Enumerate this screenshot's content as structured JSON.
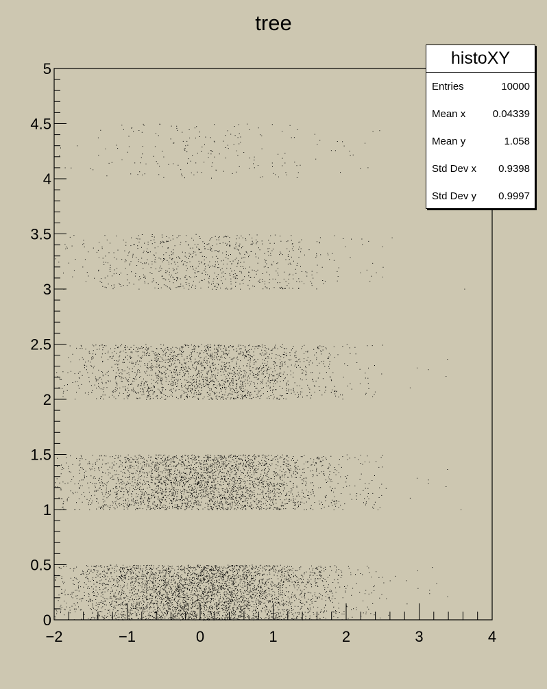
{
  "chart_data": {
    "type": "scatter",
    "title": "tree",
    "xlabel": "",
    "ylabel": "",
    "xlim": [
      -2,
      4
    ],
    "ylim": [
      0,
      5
    ],
    "x_ticks": [
      "−2",
      "−1",
      "0",
      "1",
      "2",
      "3",
      "4"
    ],
    "y_ticks": [
      "0",
      "0.5",
      "1",
      "1.5",
      "2",
      "2.5",
      "3",
      "3.5",
      "4",
      "4.5",
      "5"
    ],
    "marker_color": "#000000",
    "background_color": "#cdc7b1",
    "grid": false,
    "series": [
      {
        "band_y_range": [
          0,
          0.5
        ],
        "points": 4000,
        "x_mean": 0.0,
        "x_std": 0.95
      },
      {
        "band_y_range": [
          1,
          1.5
        ],
        "points": 3000,
        "x_mean": 0.05,
        "x_std": 0.93
      },
      {
        "band_y_range": [
          2,
          2.5
        ],
        "points": 2000,
        "x_mean": 0.05,
        "x_std": 0.93
      },
      {
        "band_y_range": [
          3,
          3.5
        ],
        "points": 800,
        "x_mean": 0.1,
        "x_std": 0.93
      },
      {
        "band_y_range": [
          4,
          4.5
        ],
        "points": 200,
        "x_mean": 0.1,
        "x_std": 0.93
      }
    ],
    "stats_box": {
      "title": "histoXY",
      "rows": [
        {
          "label": "Entries",
          "value": "10000"
        },
        {
          "label": "Mean x",
          "value": "0.04339"
        },
        {
          "label": "Mean y",
          "value": "1.058"
        },
        {
          "label": "Std Dev x",
          "value": "0.9398"
        },
        {
          "label": "Std Dev y",
          "value": "0.9997"
        }
      ]
    }
  }
}
